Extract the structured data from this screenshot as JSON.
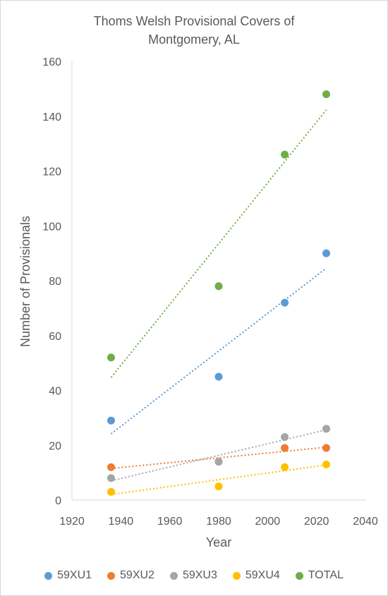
{
  "chart_data": {
    "type": "scatter",
    "title_line1": "Thoms Welsh Provisional Covers of",
    "title_line2": "Montgomery, AL",
    "xlabel": "Year",
    "ylabel": "Number of Provisionals",
    "xlim": [
      1920,
      2040
    ],
    "ylim": [
      0,
      160
    ],
    "x_ticks": [
      1920,
      1940,
      1960,
      1980,
      2000,
      2020,
      2040
    ],
    "y_ticks": [
      0,
      20,
      40,
      60,
      80,
      100,
      120,
      140,
      160
    ],
    "grid": false,
    "trendlines": "linear, dotted",
    "legend_position": "bottom",
    "series": [
      {
        "name": "59XU1",
        "color": "#5b9bd5",
        "points": [
          [
            1936,
            29
          ],
          [
            1980,
            45
          ],
          [
            2007,
            72
          ],
          [
            2024,
            90
          ]
        ]
      },
      {
        "name": "59XU2",
        "color": "#ed7d31",
        "points": [
          [
            1936,
            12
          ],
          [
            1980,
            14
          ],
          [
            2007,
            19
          ],
          [
            2024,
            19
          ]
        ]
      },
      {
        "name": "59XU3",
        "color": "#a5a5a5",
        "points": [
          [
            1936,
            8
          ],
          [
            1980,
            14
          ],
          [
            2007,
            23
          ],
          [
            2024,
            26
          ]
        ]
      },
      {
        "name": "59XU4",
        "color": "#ffc000",
        "points": [
          [
            1936,
            3
          ],
          [
            1980,
            5
          ],
          [
            2007,
            12
          ],
          [
            2024,
            13
          ]
        ]
      },
      {
        "name": "TOTAL",
        "color": "#70ad47",
        "points": [
          [
            1936,
            52
          ],
          [
            1980,
            78
          ],
          [
            2007,
            126
          ],
          [
            2024,
            148
          ]
        ]
      }
    ]
  }
}
